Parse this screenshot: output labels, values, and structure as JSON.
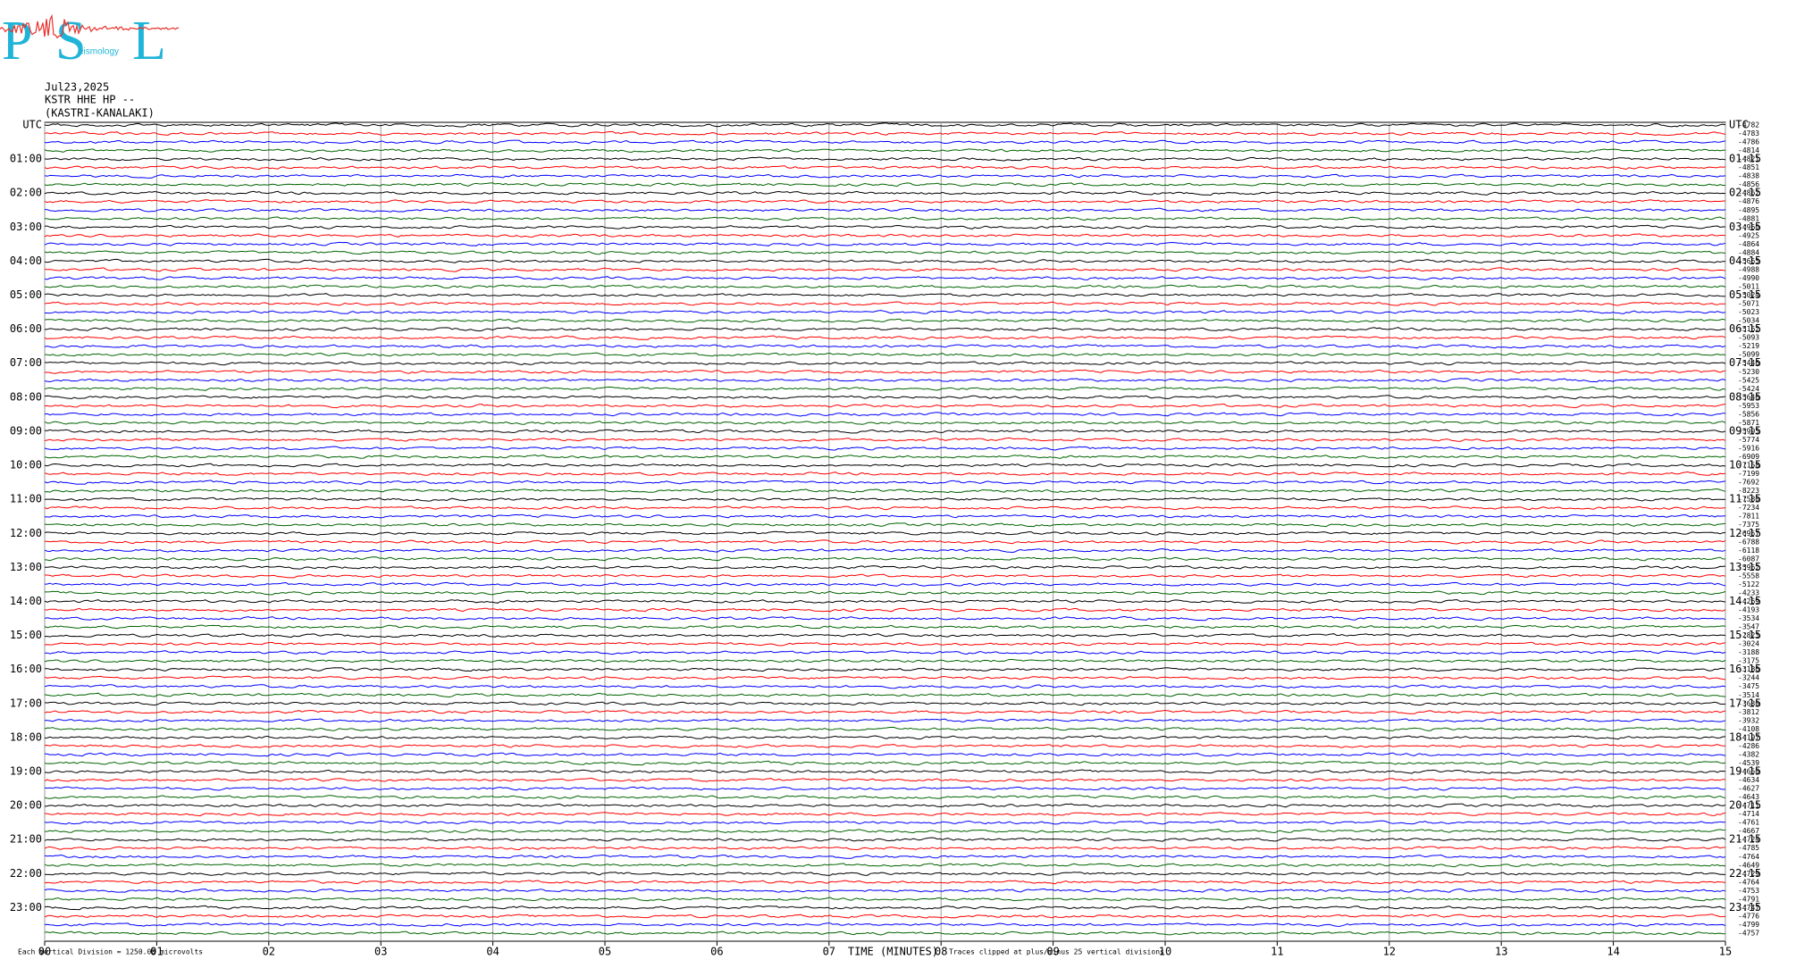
{
  "chart_data": {
    "type": "helicorder",
    "logo": {
      "letters": [
        "P",
        "S",
        "L"
      ],
      "text": "eismology"
    },
    "title_lines": [
      "Jul23,2025",
      "KSTR HHE HP --",
      "(KASTRI-KANALAKI)"
    ],
    "left_labels": [
      "UTC",
      "01:00",
      "02:00",
      "03:00",
      "04:00",
      "05:00",
      "06:00",
      "07:00",
      "08:00",
      "09:00",
      "10:00",
      "11:00",
      "12:00",
      "13:00",
      "14:00",
      "15:00",
      "16:00",
      "17:00",
      "18:00",
      "19:00",
      "20:00",
      "21:00",
      "22:00",
      "23:00"
    ],
    "right_labels": [
      "UTC",
      "01:15",
      "02:15",
      "03:15",
      "04:15",
      "05:15",
      "06:15",
      "07:15",
      "08:15",
      "09:15",
      "10:15",
      "11:15",
      "12:15",
      "13:15",
      "14:15",
      "15:15",
      "16:15",
      "17:15",
      "18:15",
      "19:15",
      "20:15",
      "21:15",
      "22:15",
      "23:15"
    ],
    "row_offsets": [
      -4782,
      -4783,
      -4786,
      -4814,
      -4821,
      -4851,
      -4838,
      -4856,
      -4862,
      -4876,
      -4895,
      -4881,
      -4960,
      -4925,
      -4864,
      -4884,
      -5665,
      -4988,
      -4990,
      -5011,
      -5024,
      -5071,
      -5023,
      -5034,
      -5162,
      -5093,
      -5219,
      -5099,
      -5446,
      -5230,
      -5425,
      -5424,
      -5646,
      -5953,
      -5856,
      -5871,
      -5995,
      -5774,
      -5916,
      -6909,
      -7158,
      -7199,
      -7692,
      -8223,
      -7580,
      -7234,
      -7811,
      -7375,
      -6957,
      -6788,
      -6118,
      -6087,
      -5962,
      -5558,
      -5122,
      -4233,
      -4269,
      -4193,
      -3534,
      -3547,
      -2823,
      -3024,
      -3188,
      -3175,
      -3186,
      -3244,
      -3475,
      -3514,
      -3630,
      -3812,
      -3932,
      -4108,
      -4197,
      -4286,
      -4382,
      -4539,
      -4650,
      -4634,
      -4627,
      -4643,
      -4711,
      -4714,
      -4761,
      -4667,
      -4724,
      -4785,
      -4764,
      -4649,
      -4729,
      -4764,
      -4753,
      -4791,
      -4747,
      -4776,
      -4799,
      -4757
    ],
    "trace_colors": [
      "#000000",
      "#ff0000",
      "#0000ff",
      "#006400"
    ],
    "xlim": [
      0,
      15
    ],
    "xticks": [
      {
        "value": 0,
        "label": "00"
      },
      {
        "value": 1,
        "label": "01"
      },
      {
        "value": 2,
        "label": "02"
      },
      {
        "value": 3,
        "label": "03"
      },
      {
        "value": 4,
        "label": "04"
      },
      {
        "value": 5,
        "label": "05"
      },
      {
        "value": 6,
        "label": "06"
      },
      {
        "value": 7,
        "label": "07"
      },
      {
        "value": 8,
        "label": "08"
      },
      {
        "value": 9,
        "label": "09"
      },
      {
        "value": 10,
        "label": "10"
      },
      {
        "value": 11,
        "label": "11"
      },
      {
        "value": 12,
        "label": "12"
      },
      {
        "value": 13,
        "label": "13"
      },
      {
        "value": 14,
        "label": "14"
      },
      {
        "value": 15,
        "label": "15"
      }
    ],
    "xlabel": "TIME (MINUTES)",
    "scale_note": "Each Vertical Division = 1250.00 microvolts",
    "clip_note": "Traces clipped at plus/minus 25 vertical divisions",
    "grid": true
  }
}
